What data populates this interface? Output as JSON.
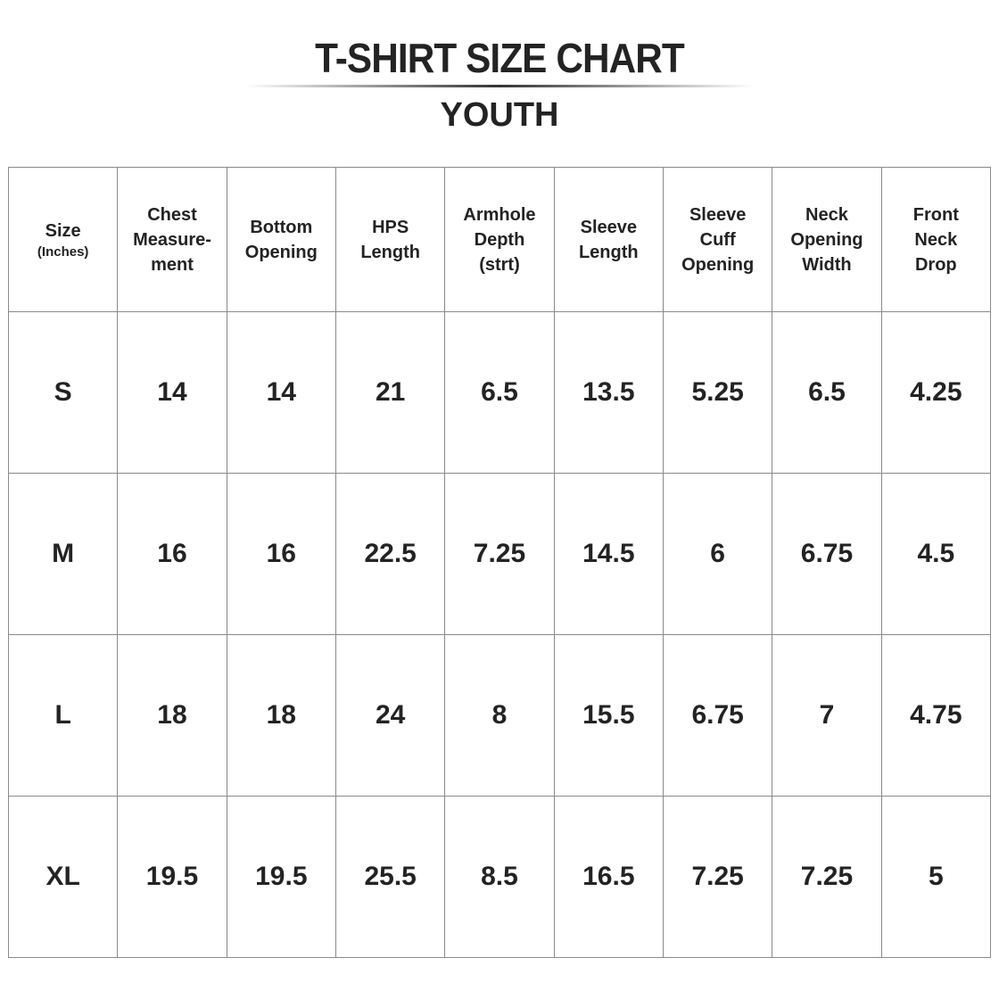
{
  "title": "T-SHIRT SIZE CHART",
  "subtitle": "YOUTH",
  "chart_data": {
    "type": "table",
    "columns": [
      {
        "label": "Size",
        "sub": "(Inches)"
      },
      {
        "label": "Chest Measure-ment"
      },
      {
        "label": "Bottom Opening"
      },
      {
        "label": "HPS Length"
      },
      {
        "label": "Armhole Depth (strt)"
      },
      {
        "label": "Sleeve Length"
      },
      {
        "label": "Sleeve Cuff Opening"
      },
      {
        "label": "Neck Opening Width"
      },
      {
        "label": "Front Neck Drop"
      }
    ],
    "rows": [
      [
        "S",
        "14",
        "14",
        "21",
        "6.5",
        "13.5",
        "5.25",
        "6.5",
        "4.25"
      ],
      [
        "M",
        "16",
        "16",
        "22.5",
        "7.25",
        "14.5",
        "6",
        "6.75",
        "4.5"
      ],
      [
        "L",
        "18",
        "18",
        "24",
        "8",
        "15.5",
        "6.75",
        "7",
        "4.75"
      ],
      [
        "XL",
        "19.5",
        "19.5",
        "25.5",
        "8.5",
        "16.5",
        "7.25",
        "7.25",
        "5"
      ]
    ]
  }
}
